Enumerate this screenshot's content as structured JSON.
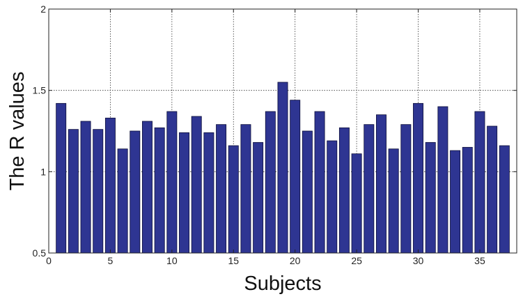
{
  "chart_data": {
    "type": "bar",
    "xlabel": "Subjects",
    "ylabel": "The R values",
    "xlim": [
      0,
      38
    ],
    "ylim": [
      0.5,
      2
    ],
    "xticks": [
      0,
      5,
      10,
      15,
      20,
      25,
      30,
      35
    ],
    "xtick_labels": [
      "0",
      "5",
      "10",
      "15",
      "20",
      "25",
      "30",
      "35"
    ],
    "yticks": [
      0.5,
      1,
      1.5,
      2
    ],
    "ytick_labels": [
      "0.5",
      "1",
      "1.5",
      "2"
    ],
    "grid": true,
    "bar_color": "#2e3592",
    "bar_edge_color": "#0d0f3a",
    "x": [
      1,
      2,
      3,
      4,
      5,
      6,
      7,
      8,
      9,
      10,
      11,
      12,
      13,
      14,
      15,
      16,
      17,
      18,
      19,
      20,
      21,
      22,
      23,
      24,
      25,
      26,
      27,
      28,
      29,
      30,
      31,
      32,
      33,
      34,
      35,
      36,
      37
    ],
    "values": [
      1.42,
      1.26,
      1.31,
      1.26,
      1.33,
      1.14,
      1.25,
      1.31,
      1.27,
      1.37,
      1.24,
      1.34,
      1.24,
      1.29,
      1.16,
      1.29,
      1.18,
      1.37,
      1.55,
      1.44,
      1.25,
      1.37,
      1.19,
      1.27,
      1.11,
      1.29,
      1.35,
      1.14,
      1.29,
      1.42,
      1.18,
      1.4,
      1.13,
      1.15,
      1.37,
      1.28,
      1.16
    ]
  }
}
